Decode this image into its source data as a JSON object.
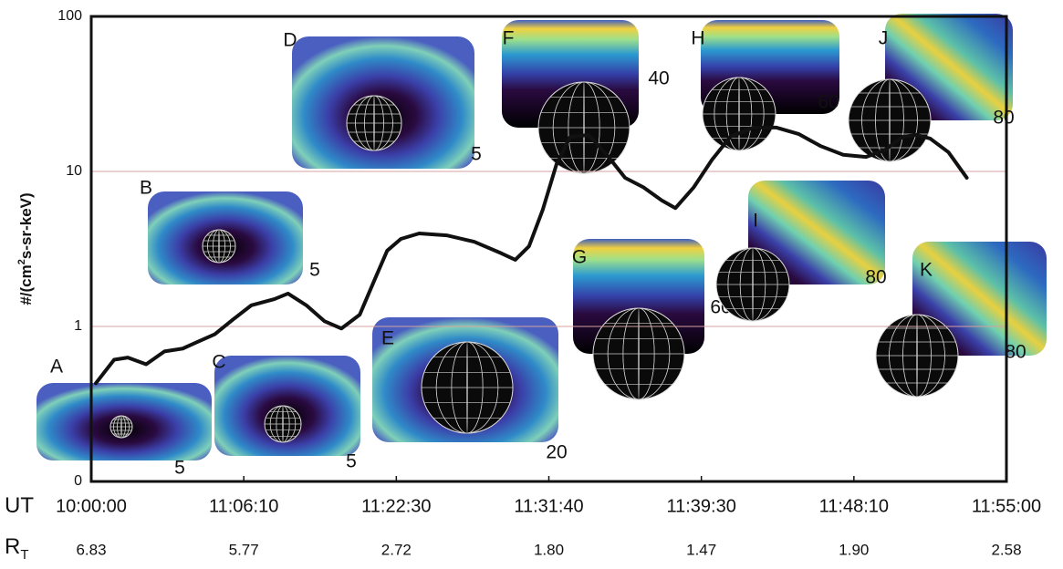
{
  "chart_data": {
    "type": "line",
    "ylabel_parts": [
      "#/(cm",
      "2",
      "s-sr-keV)"
    ],
    "log_y": true,
    "grid": true,
    "ylim": [
      0.1,
      100
    ],
    "yticks": [
      {
        "value": 0.1,
        "label": "0"
      },
      1,
      10,
      100
    ],
    "xlim": [
      0,
      6
    ],
    "xticks": [
      0,
      1,
      2,
      3,
      4,
      5,
      6
    ],
    "x_rows": [
      {
        "name": "UT",
        "labels": [
          "10:00:00",
          "11:06:10",
          "11:22:30",
          "11:31:40",
          "11:39:30",
          "11:48:10",
          "11:55:00"
        ]
      },
      {
        "name": "R",
        "sub": "T",
        "labels": [
          "6.83",
          "5.77",
          "2.72",
          "1.80",
          "1.47",
          "1.90",
          "2.58"
        ]
      }
    ],
    "series": [
      {
        "color": "#111111",
        "x": [
          0.03,
          0.15,
          0.24,
          0.36,
          0.48,
          0.6,
          0.69,
          0.81,
          0.93,
          1.05,
          1.2,
          1.29,
          1.41,
          1.53,
          1.64,
          1.76,
          1.85,
          1.94,
          2.03,
          2.15,
          2.33,
          2.51,
          2.69,
          2.78,
          2.87,
          2.96,
          3.05,
          3.14,
          3.26,
          3.38,
          3.5,
          3.62,
          3.74,
          3.83,
          3.95,
          4.07,
          4.19,
          4.34,
          4.49,
          4.64,
          4.78,
          4.93,
          5.08,
          5.2,
          5.32,
          5.41,
          5.5,
          5.62,
          5.74
        ],
        "values": [
          0.43,
          0.61,
          0.63,
          0.57,
          0.69,
          0.72,
          0.79,
          0.89,
          1.11,
          1.37,
          1.5,
          1.63,
          1.37,
          1.08,
          0.97,
          1.19,
          1.92,
          3.08,
          3.67,
          3.98,
          3.87,
          3.52,
          2.96,
          2.69,
          3.29,
          5.66,
          11.1,
          16.7,
          17.2,
          12.8,
          9.1,
          7.9,
          6.5,
          5.8,
          7.9,
          11.9,
          16.7,
          19.2,
          19.2,
          17.4,
          14.6,
          12.8,
          12.4,
          13.7,
          16.7,
          17.2,
          16.3,
          13.3,
          9.1
        ]
      }
    ],
    "panels": [
      {
        "label": "A",
        "number": 5
      },
      {
        "label": "B",
        "number": 5
      },
      {
        "label": "C",
        "number": 5
      },
      {
        "label": "D",
        "number": 5
      },
      {
        "label": "E",
        "number": 20
      },
      {
        "label": "F",
        "number": 40
      },
      {
        "label": "G",
        "number": 60
      },
      {
        "label": "H",
        "number": 60
      },
      {
        "label": "I",
        "number": 80
      },
      {
        "label": "J",
        "number": 80
      },
      {
        "label": "K",
        "number": 80
      }
    ]
  }
}
